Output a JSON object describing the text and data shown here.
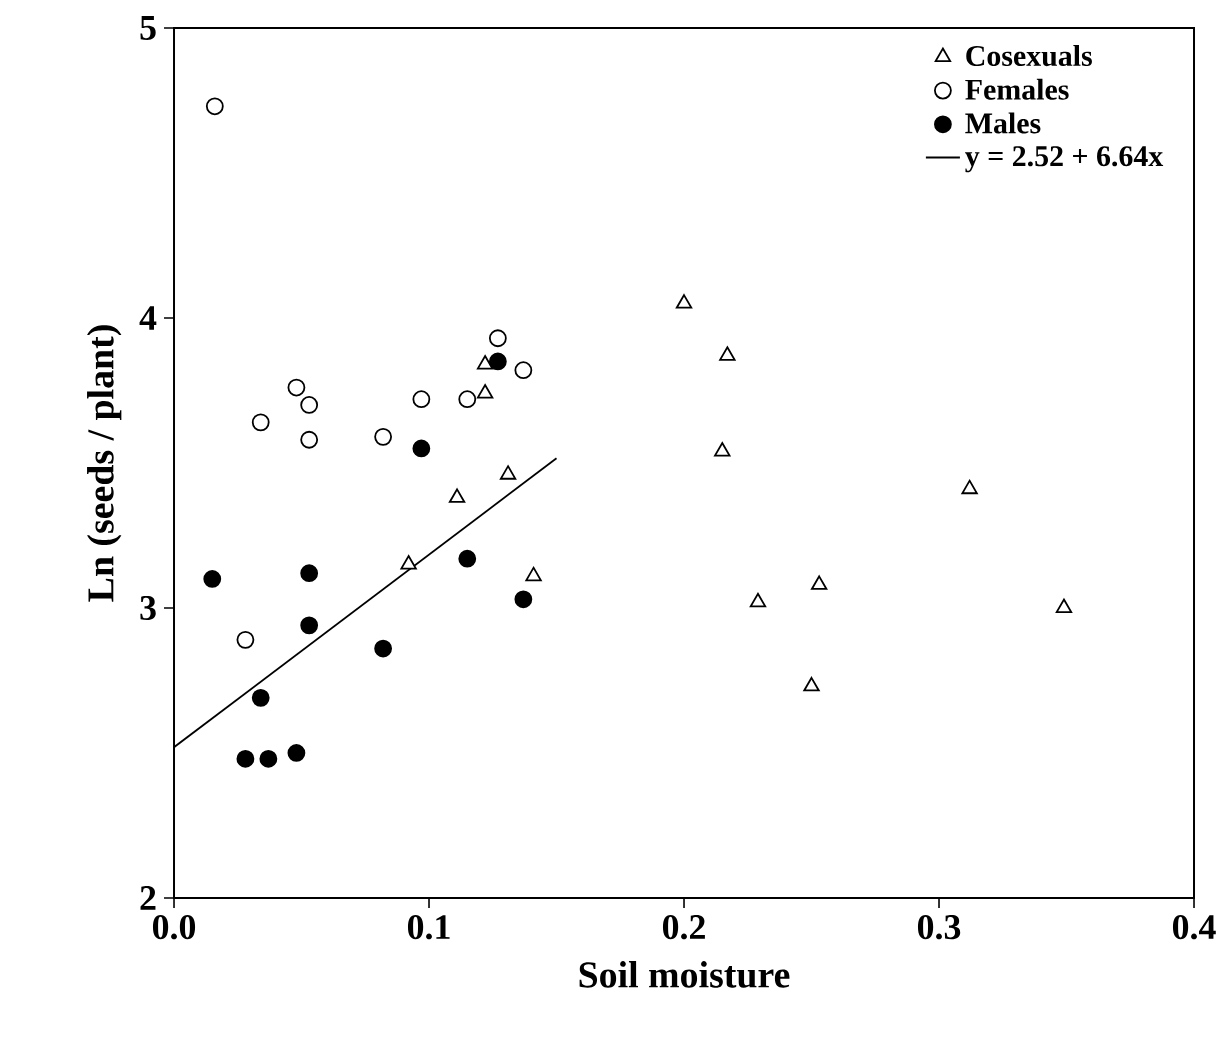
{
  "chart_data": {
    "type": "scatter",
    "xlabel": "Soil moisture",
    "ylabel": "Ln (seeds / plant)",
    "xlim": [
      0,
      0.4
    ],
    "ylim": [
      2,
      5
    ],
    "xticks": [
      {
        "value": 0,
        "label": "0.0"
      },
      {
        "value": 0.1,
        "label": "0.1"
      },
      {
        "value": 0.2,
        "label": "0.2"
      },
      {
        "value": 0.3,
        "label": "0.3"
      },
      {
        "value": 0.4,
        "label": "0.4"
      }
    ],
    "yticks": [
      2,
      3,
      4,
      5
    ],
    "grid": false,
    "legend": "top right",
    "series": [
      {
        "name": "Cosexuals",
        "marker": "triangle",
        "color": "#ffffff",
        "x": [
          0.122,
          0.122,
          0.131,
          0.111,
          0.092,
          0.141,
          0.2,
          0.217,
          0.215,
          0.312,
          0.253,
          0.229,
          0.349,
          0.25
        ],
        "values": [
          3.84,
          3.74,
          3.46,
          3.38,
          3.15,
          3.11,
          4.05,
          3.87,
          3.54,
          3.41,
          3.08,
          3.02,
          3.0,
          2.73
        ]
      },
      {
        "name": "Females",
        "marker": "circle",
        "color": "#ffffff",
        "x": [
          0.016,
          0.034,
          0.048,
          0.053,
          0.053,
          0.082,
          0.097,
          0.115,
          0.127,
          0.137,
          0.028
        ],
        "values": [
          4.73,
          3.64,
          3.76,
          3.7,
          3.58,
          3.59,
          3.72,
          3.72,
          3.93,
          3.82,
          2.89
        ]
      },
      {
        "name": "Males",
        "marker": "circle",
        "color": "#000000",
        "x": [
          0.015,
          0.053,
          0.053,
          0.034,
          0.028,
          0.037,
          0.048,
          0.082,
          0.097,
          0.115,
          0.137,
          0.127
        ],
        "values": [
          3.1,
          3.12,
          2.94,
          2.69,
          2.48,
          2.48,
          2.5,
          2.86,
          3.55,
          3.17,
          3.03,
          3.85
        ]
      },
      {
        "name": "y = 2.52 + 6.64x",
        "type": "line",
        "marker": "none",
        "line_style": "solid",
        "color": "#000000",
        "x": [
          0,
          0.15
        ],
        "values": [
          2.52,
          3.516
        ]
      }
    ]
  }
}
